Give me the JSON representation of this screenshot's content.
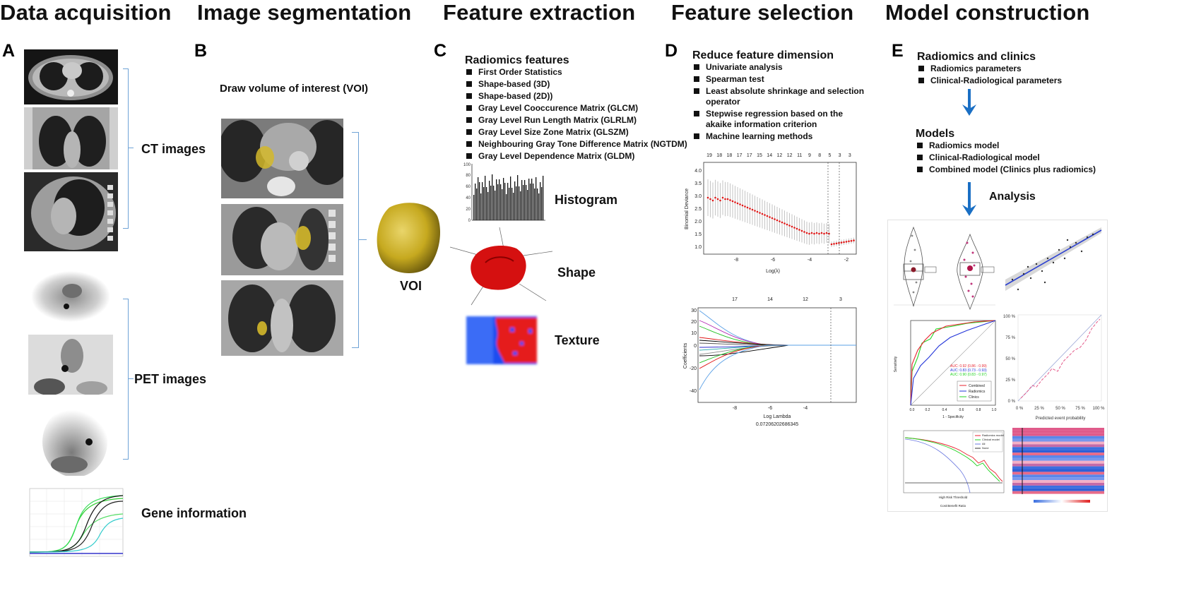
{
  "stages": [
    {
      "title": "Data acquisition"
    },
    {
      "title": "Image segmentation"
    },
    {
      "title": "Feature extraction"
    },
    {
      "title": "Feature selection"
    },
    {
      "title": "Model construction"
    }
  ],
  "panel_a": {
    "letter": "A",
    "ct_label": "CT images",
    "pet_label": "PET images",
    "gene_label": "Gene information"
  },
  "panel_b": {
    "letter": "B",
    "heading": "Draw volume of interest (VOI)",
    "voi_label": "VOI"
  },
  "panel_c": {
    "letter": "C",
    "heading": "Radiomics features",
    "features": [
      "First Order Statistics",
      "Shape-based (3D)",
      "Shape-based (2D))",
      "Gray Level Cooccurence Matrix (GLCM)",
      "Gray Level Run Length Matrix (GLRLM)",
      "Gray Level Size Zone Matrix (GLSZM)",
      "Neighbouring Gray Tone Difference Matrix (NGTDM)",
      "Gray Level Dependence Matrix (GLDM)"
    ],
    "histogram_label": "Histogram",
    "shape_label": "Shape",
    "texture_label": "Texture",
    "hist_ticks": [
      "100",
      "80",
      "60",
      "40",
      "20",
      "0"
    ]
  },
  "panel_d": {
    "letter": "D",
    "heading": "Reduce feature dimension",
    "methods": [
      "Univariate analysis",
      "Spearman test",
      "Least absolute shrinkage and selection operator",
      "Stepwise regression based on the akaike information criterion",
      "Machine learning methods"
    ],
    "cv_plot": {
      "top_counts": [
        "19",
        "18",
        "18",
        "17",
        "17",
        "15",
        "14",
        "12",
        "12",
        "11",
        "9",
        "8",
        "5",
        "3",
        "3"
      ],
      "ylabel": "Binomial Deviance",
      "xlabel": "Log(λ)",
      "yticks": [
        "4.0",
        "3.5",
        "3.0",
        "2.5",
        "2.0",
        "1.5",
        "1.0"
      ],
      "xticks": [
        "-8",
        "-6",
        "-4",
        "-2"
      ]
    },
    "coef_plot": {
      "top_counts": [
        "17",
        "14",
        "12",
        "3"
      ],
      "ylabel": "Coefficients",
      "xlabel": "Log Lambda",
      "lambda_value": "0.07206202686345",
      "yticks": [
        "30",
        "20",
        "10",
        "0",
        "-20",
        "-40"
      ],
      "xticks": [
        "-8",
        "-6",
        "-4"
      ]
    }
  },
  "panel_e": {
    "letter": "E",
    "heading1": "Radiomics and clinics",
    "inputs": [
      "Radiomics parameters",
      "Clinical-Radiological  parameters"
    ],
    "heading2": "Models",
    "models": [
      "Radiomics model",
      "Clinical-Radiological model",
      "Combined model (Clinics plus radiomics)"
    ],
    "analysis_label": "Analysis",
    "roc": {
      "ylabel": "Sensitivity",
      "xlabel": "1 - Specificity",
      "auc_lines": [
        "AUC: 0.92 (0.86 - 0.99)",
        "AUC: 0.83 (0.73 - 0.93)",
        "AUC: 0.90 (0.83 - 0.97)"
      ],
      "legend": [
        "Combined",
        "Radiomics",
        "Clinics"
      ],
      "ticks": [
        "0.0",
        "0.2",
        "0.4",
        "0.6",
        "0.8",
        "1.0"
      ],
      "colors": [
        "#e8232f",
        "#2234d9",
        "#21d321"
      ]
    },
    "calibration": {
      "xlabel": "Predicted event probability",
      "ticks": [
        "0 %",
        "25 %",
        "50 %",
        "75 %",
        "100 %"
      ]
    },
    "dca": {
      "legend": [
        "Radiomics model",
        "Clinical model",
        "All",
        "None"
      ],
      "xlabel": "High Risk Threshold",
      "footer": "Cost:Benefit Ratio"
    }
  },
  "colors": {
    "bracket": "#6fa3d6",
    "arrow": "#1a6fc4",
    "voi_yellow": "#d4b82a",
    "shape_red": "#d51010",
    "texture_blue": "#1e4ef0"
  }
}
